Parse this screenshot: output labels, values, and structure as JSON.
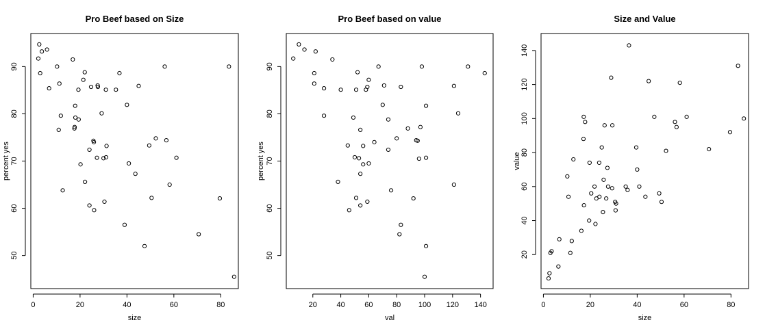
{
  "chart_data": [
    {
      "type": "scatter",
      "title": "Pro Beef based on Size",
      "xlabel": "size",
      "ylabel": "percent yes",
      "xlim": [
        -1,
        87.5
      ],
      "ylim": [
        43,
        97
      ],
      "xticks": [
        0,
        20,
        40,
        60,
        80
      ],
      "yticks": [
        50,
        60,
        70,
        80,
        90
      ],
      "points": [
        [
          2.6,
          94.7
        ],
        [
          3.7,
          93.2
        ],
        [
          5.9,
          93.6
        ],
        [
          2.2,
          91.7
        ],
        [
          3.0,
          88.6
        ],
        [
          10.2,
          90.0
        ],
        [
          11.2,
          86.4
        ],
        [
          6.8,
          85.4
        ],
        [
          16.9,
          91.5
        ],
        [
          22.0,
          88.8
        ],
        [
          21.4,
          87.2
        ],
        [
          19.3,
          85.1
        ],
        [
          24.7,
          85.7
        ],
        [
          27.5,
          86.0
        ],
        [
          27.6,
          85.7
        ],
        [
          31.0,
          85.1
        ],
        [
          35.3,
          85.1
        ],
        [
          36.8,
          88.6
        ],
        [
          45.0,
          85.9
        ],
        [
          56.1,
          90.0
        ],
        [
          83.5,
          90.0
        ],
        [
          40.0,
          81.9
        ],
        [
          17.9,
          81.7
        ],
        [
          18.0,
          79.2
        ],
        [
          19.4,
          78.8
        ],
        [
          11.8,
          79.6
        ],
        [
          29.2,
          80.1
        ],
        [
          17.7,
          77.2
        ],
        [
          17.6,
          76.9
        ],
        [
          10.9,
          76.6
        ],
        [
          25.7,
          74.3
        ],
        [
          25.9,
          74.0
        ],
        [
          52.3,
          74.8
        ],
        [
          56.8,
          74.4
        ],
        [
          49.5,
          73.3
        ],
        [
          31.3,
          73.2
        ],
        [
          24.0,
          72.4
        ],
        [
          27.2,
          70.7
        ],
        [
          30.0,
          70.6
        ],
        [
          31.1,
          70.8
        ],
        [
          61.1,
          70.7
        ],
        [
          40.8,
          69.5
        ],
        [
          20.2,
          69.3
        ],
        [
          43.6,
          67.3
        ],
        [
          22.1,
          65.6
        ],
        [
          58.2,
          65.0
        ],
        [
          12.6,
          63.8
        ],
        [
          50.5,
          62.2
        ],
        [
          79.6,
          62.1
        ],
        [
          30.4,
          61.4
        ],
        [
          24.0,
          60.6
        ],
        [
          26.0,
          59.6
        ],
        [
          39.0,
          56.5
        ],
        [
          70.6,
          54.5
        ],
        [
          47.5,
          52.0
        ],
        [
          85.7,
          45.5
        ]
      ]
    },
    {
      "type": "scatter",
      "title": "Pro Beef based on value",
      "xlabel": "val",
      "ylabel": "percent yes",
      "xlim": [
        1,
        149
      ],
      "ylim": [
        43,
        97
      ],
      "xticks": [
        20,
        40,
        60,
        80,
        100,
        120,
        140
      ],
      "yticks": [
        50,
        60,
        70,
        80,
        90
      ],
      "points": [
        [
          6,
          91.7
        ],
        [
          10,
          94.7
        ],
        [
          14,
          93.6
        ],
        [
          22,
          93.2
        ],
        [
          21,
          88.6
        ],
        [
          34,
          91.5
        ],
        [
          21,
          86.4
        ],
        [
          28,
          85.4
        ],
        [
          40,
          85.1
        ],
        [
          52,
          88.8
        ],
        [
          51,
          85.1
        ],
        [
          58,
          85.1
        ],
        [
          60,
          87.2
        ],
        [
          59,
          85.7
        ],
        [
          67,
          90.0
        ],
        [
          71,
          86.0
        ],
        [
          83,
          85.7
        ],
        [
          98,
          90.0
        ],
        [
          121,
          85.9
        ],
        [
          131,
          90.0
        ],
        [
          143,
          88.6
        ],
        [
          101,
          81.7
        ],
        [
          70,
          81.9
        ],
        [
          124,
          80.1
        ],
        [
          28,
          79.6
        ],
        [
          49,
          79.2
        ],
        [
          74,
          78.8
        ],
        [
          54,
          76.6
        ],
        [
          88,
          76.9
        ],
        [
          97,
          77.2
        ],
        [
          80,
          74.8
        ],
        [
          94,
          74.4
        ],
        [
          95,
          74.3
        ],
        [
          45,
          73.3
        ],
        [
          56,
          73.2
        ],
        [
          64,
          74.0
        ],
        [
          74,
          72.4
        ],
        [
          50,
          70.8
        ],
        [
          53,
          70.6
        ],
        [
          96,
          70.5
        ],
        [
          101,
          70.7
        ],
        [
          56,
          69.3
        ],
        [
          60,
          69.5
        ],
        [
          54,
          67.3
        ],
        [
          38,
          65.6
        ],
        [
          121,
          65.0
        ],
        [
          76,
          63.8
        ],
        [
          51,
          62.2
        ],
        [
          92,
          62.1
        ],
        [
          59,
          61.4
        ],
        [
          54,
          60.6
        ],
        [
          46,
          59.6
        ],
        [
          83,
          56.5
        ],
        [
          82,
          54.5
        ],
        [
          101,
          52.0
        ],
        [
          100,
          45.5
        ]
      ]
    },
    {
      "type": "scatter",
      "title": "Size and Value",
      "xlabel": "size",
      "ylabel": "value",
      "xlim": [
        -1,
        87.5
      ],
      "ylim": [
        0,
        150
      ],
      "xticks": [
        0,
        20,
        40,
        60,
        80
      ],
      "yticks": [
        20,
        40,
        60,
        80,
        100,
        120,
        140
      ],
      "points": [
        [
          2.2,
          6
        ],
        [
          2.6,
          9
        ],
        [
          3.0,
          21
        ],
        [
          3.5,
          22
        ],
        [
          6.4,
          13
        ],
        [
          6.8,
          29
        ],
        [
          11.5,
          21
        ],
        [
          12.1,
          28
        ],
        [
          16.2,
          34
        ],
        [
          17.3,
          49
        ],
        [
          19.5,
          40
        ],
        [
          22.2,
          38
        ],
        [
          10.7,
          54
        ],
        [
          10.2,
          66
        ],
        [
          12.8,
          76
        ],
        [
          17.1,
          88
        ],
        [
          17.2,
          101
        ],
        [
          17.8,
          98
        ],
        [
          19.7,
          74
        ],
        [
          20.4,
          56
        ],
        [
          21.8,
          60
        ],
        [
          22.6,
          53
        ],
        [
          23.9,
          54
        ],
        [
          23.8,
          74
        ],
        [
          24.9,
          83
        ],
        [
          25.7,
          64
        ],
        [
          25.4,
          45
        ],
        [
          26.1,
          96
        ],
        [
          27.3,
          71
        ],
        [
          26.8,
          53
        ],
        [
          27.6,
          60
        ],
        [
          29.3,
          59
        ],
        [
          29.4,
          96
        ],
        [
          28.9,
          124
        ],
        [
          30.6,
          51
        ],
        [
          31.0,
          50
        ],
        [
          30.8,
          46
        ],
        [
          35.1,
          60
        ],
        [
          35.9,
          58
        ],
        [
          36.5,
          143
        ],
        [
          39.6,
          83
        ],
        [
          40.0,
          70
        ],
        [
          40.9,
          60
        ],
        [
          43.5,
          54
        ],
        [
          44.9,
          122
        ],
        [
          47.3,
          101
        ],
        [
          49.4,
          56
        ],
        [
          50.4,
          51
        ],
        [
          52.3,
          81
        ],
        [
          56.1,
          98
        ],
        [
          56.8,
          95
        ],
        [
          58.2,
          121
        ],
        [
          61.1,
          101
        ],
        [
          70.6,
          82
        ],
        [
          79.6,
          92
        ],
        [
          83.0,
          131
        ],
        [
          85.5,
          100
        ]
      ]
    }
  ]
}
